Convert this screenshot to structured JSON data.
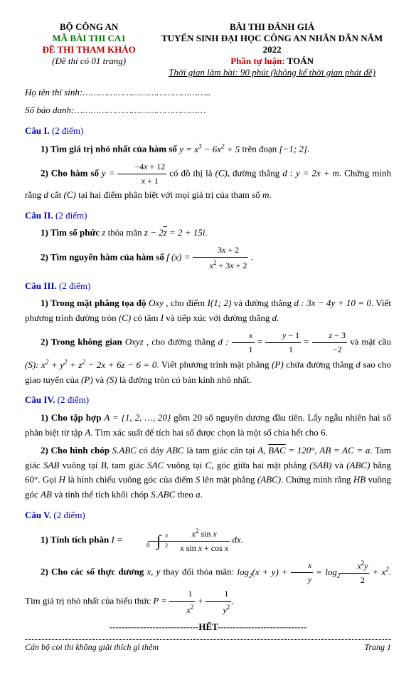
{
  "header": {
    "left": {
      "l1": "BỘ CÔNG AN",
      "l2": "MÃ BÀI THI CA1",
      "l3": "ĐỀ THI THAM KHẢO",
      "l4": "(Đề thi có 01 trang)"
    },
    "right": {
      "r1": "BÀI THI ĐÁNH GIÁ",
      "r2": "TUYỂN SINH ĐẠI HỌC CÔNG AN NHÂN DÂN NĂM 2022",
      "r3a": "Phần tự luận:",
      "r3b": " TOÁN",
      "r4": "Thời gian làm bài: 90 phút (không kể thời gian phát đề)"
    }
  },
  "info": {
    "name_label": "Họ tên thí sinh:",
    "dots1": "………………………………………..",
    "id_label": "Số báo danh:",
    "dots2": "…………………………………………"
  },
  "cau1": {
    "title": "Câu I. ",
    "pts": "(2 điểm)",
    "q1a": "1) Tìm giá trị nhỏ nhất của hàm số ",
    "q1b": " trên đoạn ",
    "q1c": ".",
    "q2a": "2) Cho hàm số ",
    "q2b": " có đồ thị là ",
    "q2c": ", đường thẳng ",
    "q2d": ". Chứng minh rằng ",
    "q2e": " cắt ",
    "q2f": " tại hai điểm phân biệt với mọi giá trị của tham số ",
    "q2g": "."
  },
  "cau2": {
    "title": "Câu II. ",
    "pts": "(2 điểm)",
    "q1a": "1) Tìm số phức ",
    "q1b": " thỏa mãn ",
    "q1c": ".",
    "q2a": "2) Tìm nguyên hàm của hàm số ",
    "q2b": "."
  },
  "cau3": {
    "title": "Câu III. ",
    "pts": "(2 điểm)",
    "q1a": "1) Trong mặt phẳng tọa độ ",
    "q1b": ", cho điểm ",
    "q1c": " và đường thẳng ",
    "q1d": ". Viết phương trình đường tròn ",
    "q1e": " có tâm ",
    "q1f": " và tiếp xúc với đường thẳng ",
    "q1g": ".",
    "q2a": "2) Trong không gian ",
    "q2b": ", cho đường thẳng ",
    "q2c": " và mặt cầu ",
    "q2d": ". Viết phương trình mặt phẳng ",
    "q2e": " chứa đường thẳng ",
    "q2f": " sao cho giao tuyến của ",
    "q2g": " và ",
    "q2h": " là đường tròn có bán kính nhỏ nhất."
  },
  "cau4": {
    "title": "Câu IV. ",
    "pts": "(2 điểm)",
    "q1a": "1) Cho tập hợp ",
    "q1b": " gồm 20 số nguyên dương đầu tiên. Lấy ngẫu nhiên hai số phân biệt từ tập ",
    "q1c": ". Tìm xác suất để tích hai số được chọn là một số chia hết cho 6.",
    "q2a": "2) Cho hình chóp ",
    "q2b": " có đáy ",
    "q2c": " là tam giác cân tại ",
    "q2d": ", ",
    "q2e": ", ",
    "q2f": ". Tam giác ",
    "q2g": " vuông tại ",
    "q2h": ", tam giác ",
    "q2i": " vuông tại ",
    "q2j": ", góc giữa hai mặt phẳng ",
    "q2k": " và ",
    "q2l": " bằng 60°. Gọi ",
    "q2m": " là hình chiếu vuông góc của điểm ",
    "q2n": " lên mặt phẳng ",
    "q2o": ". Chứng minh rằng ",
    "q2p": " vuông góc ",
    "q2q": " và tính thể tích khối chóp ",
    "q2r": " theo ",
    "q2s": "."
  },
  "cau5": {
    "title": "Câu V. ",
    "pts": "(2 điểm)",
    "q1a": "1) Tính tích phân ",
    "q1b": ".",
    "q2a": "2) Cho các số thực dương ",
    "q2b": " thay đổi thỏa mãn: ",
    "q2c": ". Tìm giá trị nhỏ nhất của biểu thức ",
    "q2d": "."
  },
  "het": "-----------------------------HẾT-----------------------------",
  "footer": {
    "left": "Cán bộ coi thi không giải thích gì thêm",
    "right": "Trang 1"
  }
}
